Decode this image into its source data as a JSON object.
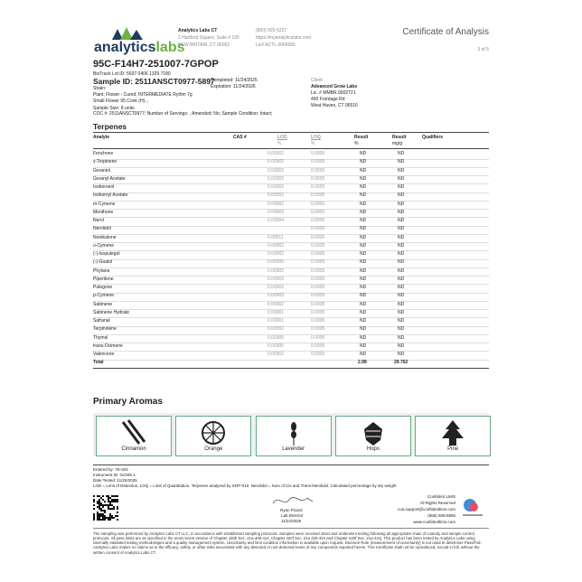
{
  "header": {
    "logo_word_1": "analytics",
    "logo_word_2": "labs",
    "lab_name": "Analytics Labs CT",
    "address_1": "1 Hartford Square, Suite # 230",
    "address_2": "NEW BRITAIN, CT 06052",
    "phone": "(860) 925-5227",
    "website": "https://myanalyticslabs.com",
    "license": "Lic# ACTL.0000005",
    "doc_title": "Certificate of Analysis",
    "page": "3 of 5"
  },
  "sample": {
    "code": "95C-F14H7-251007-7GPOP",
    "biotrack": "BioTrack Lot ID: 5637 0406 1329 7180",
    "sample_id": "Sample ID: 2511ANSCT0977-5897",
    "strain_label": "Strain:",
    "matrix": "Plant, Flower - Cured, INTERMEDIATE Rythm 7g",
    "product": "Small Flower 95 Cook (H)...",
    "completed": "Completed: 11/24/2025",
    "expiration": "Expiration: 11/24/2026",
    "size": "Sample Size: 8 units",
    "coc": "COC #: 2511ANSCT0977; Number of Servings: ; Amended: No; Sample Condition: Intact;"
  },
  "client": {
    "label": "Client",
    "name": "Advanced Grow Labs",
    "license": "Lic. # MMBR.0002721",
    "address_1": "400 Frontage Rd",
    "address_2": "West Haven, CT 06516"
  },
  "terpenes": {
    "title": "Terpenes",
    "columns": [
      "Analyte",
      "CAS #",
      "LOD",
      "LOQ",
      "Result",
      "Result",
      "Qualifiers"
    ],
    "units": [
      "%",
      "%",
      "%",
      "mg/g"
    ],
    "rows": [
      [
        "Fenchone",
        "0.00002",
        "0.0005",
        "ND",
        "ND"
      ],
      [
        "γ-Terpinene",
        "0.00002",
        "0.0005",
        "ND",
        "ND"
      ],
      [
        "Geraniol",
        "0.00003",
        "0.0005",
        "ND",
        "ND"
      ],
      [
        "Geranyl Acetate",
        "0.00002",
        "0.0005",
        "ND",
        "ND"
      ],
      [
        "Isoborneol",
        "0.00002",
        "0.0005",
        "ND",
        "ND"
      ],
      [
        "Isobornyl Acetate",
        "0.00002",
        "0.0005",
        "ND",
        "ND"
      ],
      [
        "m-Cymene",
        "0.00002",
        "0.0005",
        "ND",
        "ND"
      ],
      [
        "Menthone",
        "0.00003",
        "0.0005",
        "ND",
        "ND"
      ],
      [
        "Nerol",
        "0.00004",
        "0.0005",
        "ND",
        "ND"
      ],
      [
        "Nerolidol",
        null,
        "0.0005",
        "ND",
        "ND"
      ],
      [
        "Nootkatone",
        "0.00011",
        "0.0005",
        "ND",
        "ND"
      ],
      [
        "o-Cymene",
        "0.00002",
        "0.0005",
        "ND",
        "ND"
      ],
      [
        "(-)-Isopulegol",
        "0.00002",
        "0.0005",
        "ND",
        "ND"
      ],
      [
        "(-)-Guaiol",
        "0.00006",
        "0.0005",
        "ND",
        "ND"
      ],
      [
        "Phytane",
        "0.00002",
        "0.0005",
        "ND",
        "ND"
      ],
      [
        "Piperitone",
        "0.00003",
        "0.0005",
        "ND",
        "ND"
      ],
      [
        "Pulegone",
        "0.00002",
        "0.0005",
        "ND",
        "ND"
      ],
      [
        "p-Cymene",
        "0.00003",
        "0.0005",
        "ND",
        "ND"
      ],
      [
        "Sabinene",
        "0.00002",
        "0.0005",
        "ND",
        "ND"
      ],
      [
        "Sabinene Hydrate",
        "0.00001",
        "0.0005",
        "ND",
        "ND"
      ],
      [
        "Safranal",
        "0.00001",
        "0.0005",
        "ND",
        "ND"
      ],
      [
        "Terpinolene",
        "0.00002",
        "0.0005",
        "ND",
        "ND"
      ],
      [
        "Thymol",
        "0.00005",
        "0.0005",
        "ND",
        "ND"
      ],
      [
        "trans-Ocimene",
        "0.00005",
        "0.0005",
        "ND",
        "ND"
      ],
      [
        "Valencene",
        "0.00002",
        "0.0005",
        "ND",
        "ND"
      ]
    ],
    "total": [
      "Total",
      "2.98",
      "29.762"
    ]
  },
  "aromas": {
    "title": "Primary Aromas",
    "items": [
      "Cinnamon",
      "Orange",
      "Lavender",
      "Hops",
      "Pine"
    ]
  },
  "footer": {
    "entered_by": "Entered by: TE-002",
    "instrument": "Instrument ID: GCMS-1",
    "date_tested": "Date Tested: 11/20/2025",
    "note": "LOD = Limit of Detection, LOQ = Limit of Quantitation. Terpenes analyzed by SOP-010. Nerolidol = Sum of Cis and Trans-Nerolidol. Calculated percentage by dry weight",
    "signer": "Ryan Picard",
    "signer_title": "Lab Director",
    "sign_date": "11/24/2025",
    "lims_name": "Confident LIMS",
    "lims_rights": "All Rights Reserved",
    "lims_email": "coa.support@confidentlims.com",
    "lims_phone": "(866) 506-5866",
    "lims_web": "www.confidentlims.com",
    "disclaimer": "The sampling was performed by Analytics Labs CT LLC, in accordance with established sampling protocols. Samples were received intact and underwent testing following all appropriate chain of custody and sample control protocols. All pass limits are as specified in the most recent version of Chapter 420h Sec. 21a-408-414, Chapter 420f Sec. 21a 420-424 and Chapter 420f Sec. 21a-421j. This product has been tested by Analytics Labs using internally-validated testing methodologies and a quality management system. Uncertainty and limit condition information is available upon request. Decision Rule (measurement of uncertainty) is not used to determine Pass/Fail. Analytics Labs makes no claims as to the efficacy, safety, or other risks associated with any detected or non-detected levels of any compounds reported herein. This Certificate shall not be reproduced, except in full, without the written consent of Analytics Labs CT."
  }
}
